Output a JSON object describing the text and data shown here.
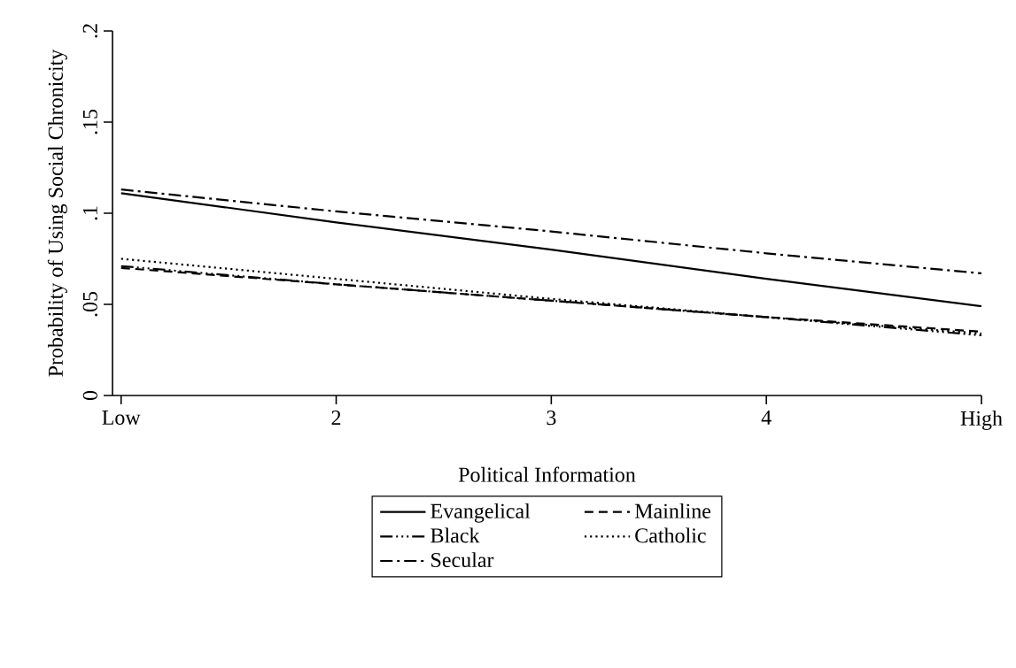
{
  "chart_data": {
    "type": "line",
    "xlabel": "Political Information",
    "ylabel": "Probability of Using Social Chronicity",
    "x": [
      1,
      2,
      3,
      4,
      5
    ],
    "series": [
      {
        "name": "Evangelical",
        "color": "#000000",
        "line_style": "solid",
        "values": [
          0.111,
          0.095,
          0.08,
          0.064,
          0.049
        ]
      },
      {
        "name": "Mainline",
        "color": "#000000",
        "line_style": "dashed",
        "values": [
          0.07,
          0.061,
          0.052,
          0.043,
          0.035
        ]
      },
      {
        "name": "Black",
        "color": "#000000",
        "line_style": "dashdotdotted",
        "values": [
          0.071,
          0.061,
          0.052,
          0.043,
          0.033
        ]
      },
      {
        "name": "Catholic",
        "color": "#000000",
        "line_style": "dotted",
        "values": [
          0.075,
          0.064,
          0.053,
          0.043,
          0.034
        ]
      },
      {
        "name": "Secular",
        "color": "#000000",
        "line_style": "dashdotted",
        "values": [
          0.113,
          0.101,
          0.09,
          0.078,
          0.067
        ]
      }
    ],
    "xlim": [
      0.96,
      5
    ],
    "xticks": [
      {
        "value": 1,
        "label": "Low"
      },
      2,
      3,
      4,
      {
        "value": 5,
        "label": "High"
      }
    ],
    "ylim": [
      0,
      0.2
    ],
    "yticks": [
      0,
      {
        "value": 0.05,
        "label": ".05"
      },
      {
        "value": 0.1,
        "label": ".1"
      },
      {
        "value": 0.15,
        "label": ".15"
      },
      {
        "value": 0.2,
        "label": ".2"
      }
    ],
    "grid": false,
    "legend": "bottom",
    "marker": "none"
  }
}
